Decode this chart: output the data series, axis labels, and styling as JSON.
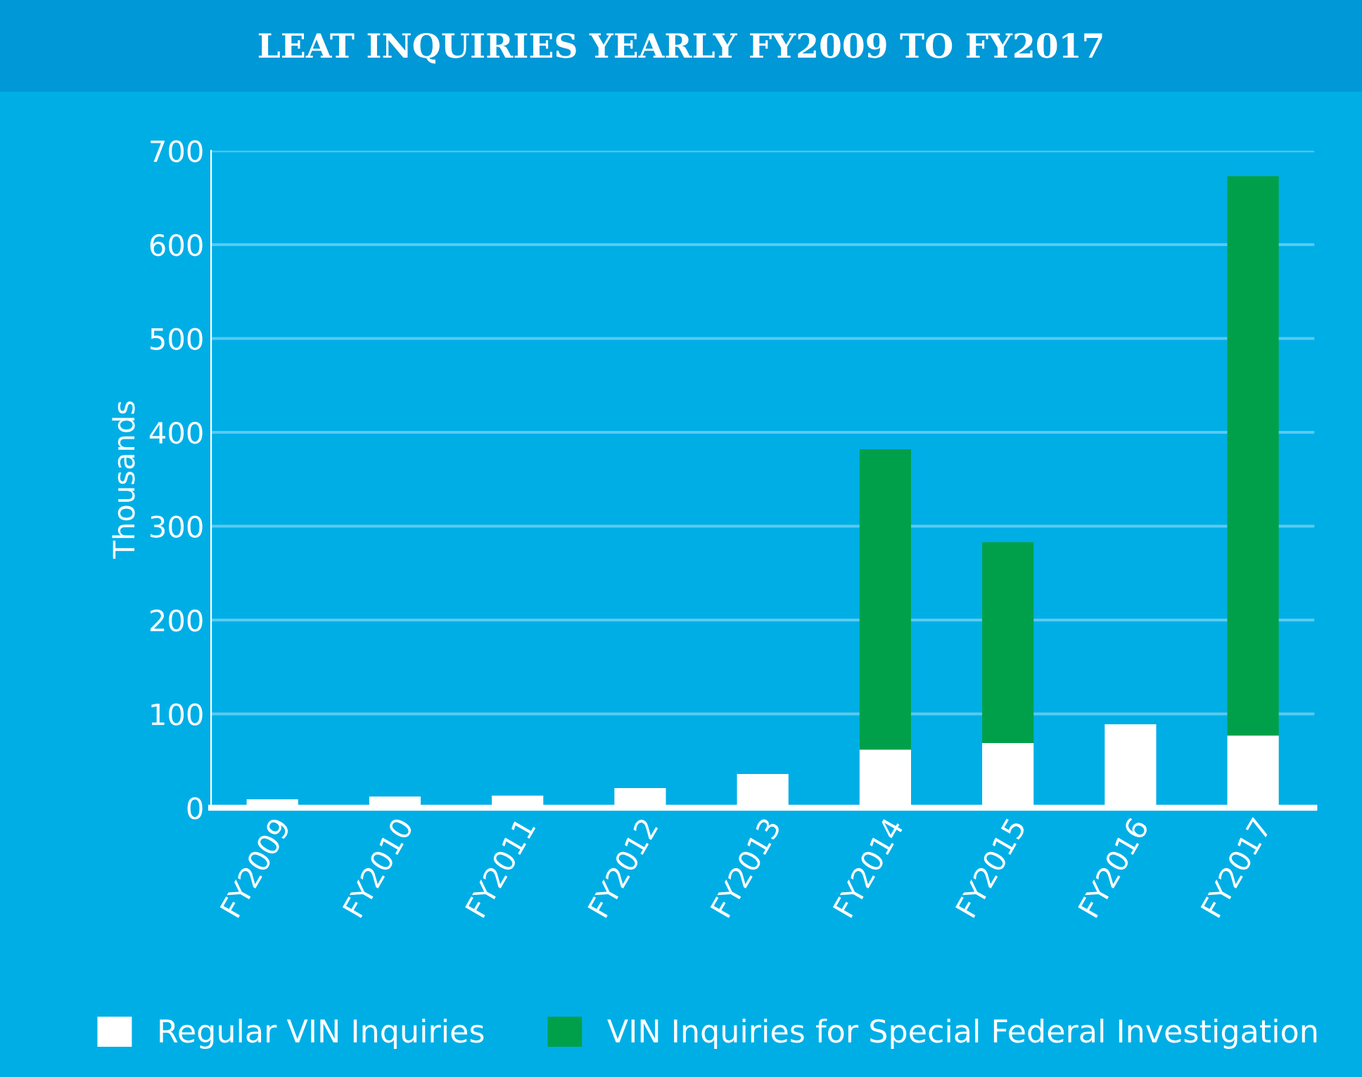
{
  "chart_data": {
    "type": "bar",
    "title": "LEAT INQUIRIES YEARLY FY2009 TO FY2017",
    "ylabel": "Thousands",
    "categories": [
      "FY2009",
      "FY2010",
      "FY2011",
      "FY2012",
      "FY2013",
      "FY2014",
      "FY2015",
      "FY2016",
      "FY2017"
    ],
    "series": [
      {
        "name": "Regular VIN Inquiries",
        "color": "#ffffff",
        "values": [
          9,
          12,
          13,
          21,
          36,
          62,
          69,
          89,
          77
        ]
      },
      {
        "name": "VIN Inquiries for Special Federal Investigation",
        "color": "#00a04a",
        "values": [
          0,
          0,
          0,
          0,
          0,
          320,
          214,
          0,
          596
        ]
      }
    ],
    "stacked": true,
    "ylim": [
      0,
      700
    ],
    "yticks": [
      0,
      100,
      200,
      300,
      400,
      500,
      600,
      700
    ],
    "grid": "y",
    "legend": "bottom"
  }
}
